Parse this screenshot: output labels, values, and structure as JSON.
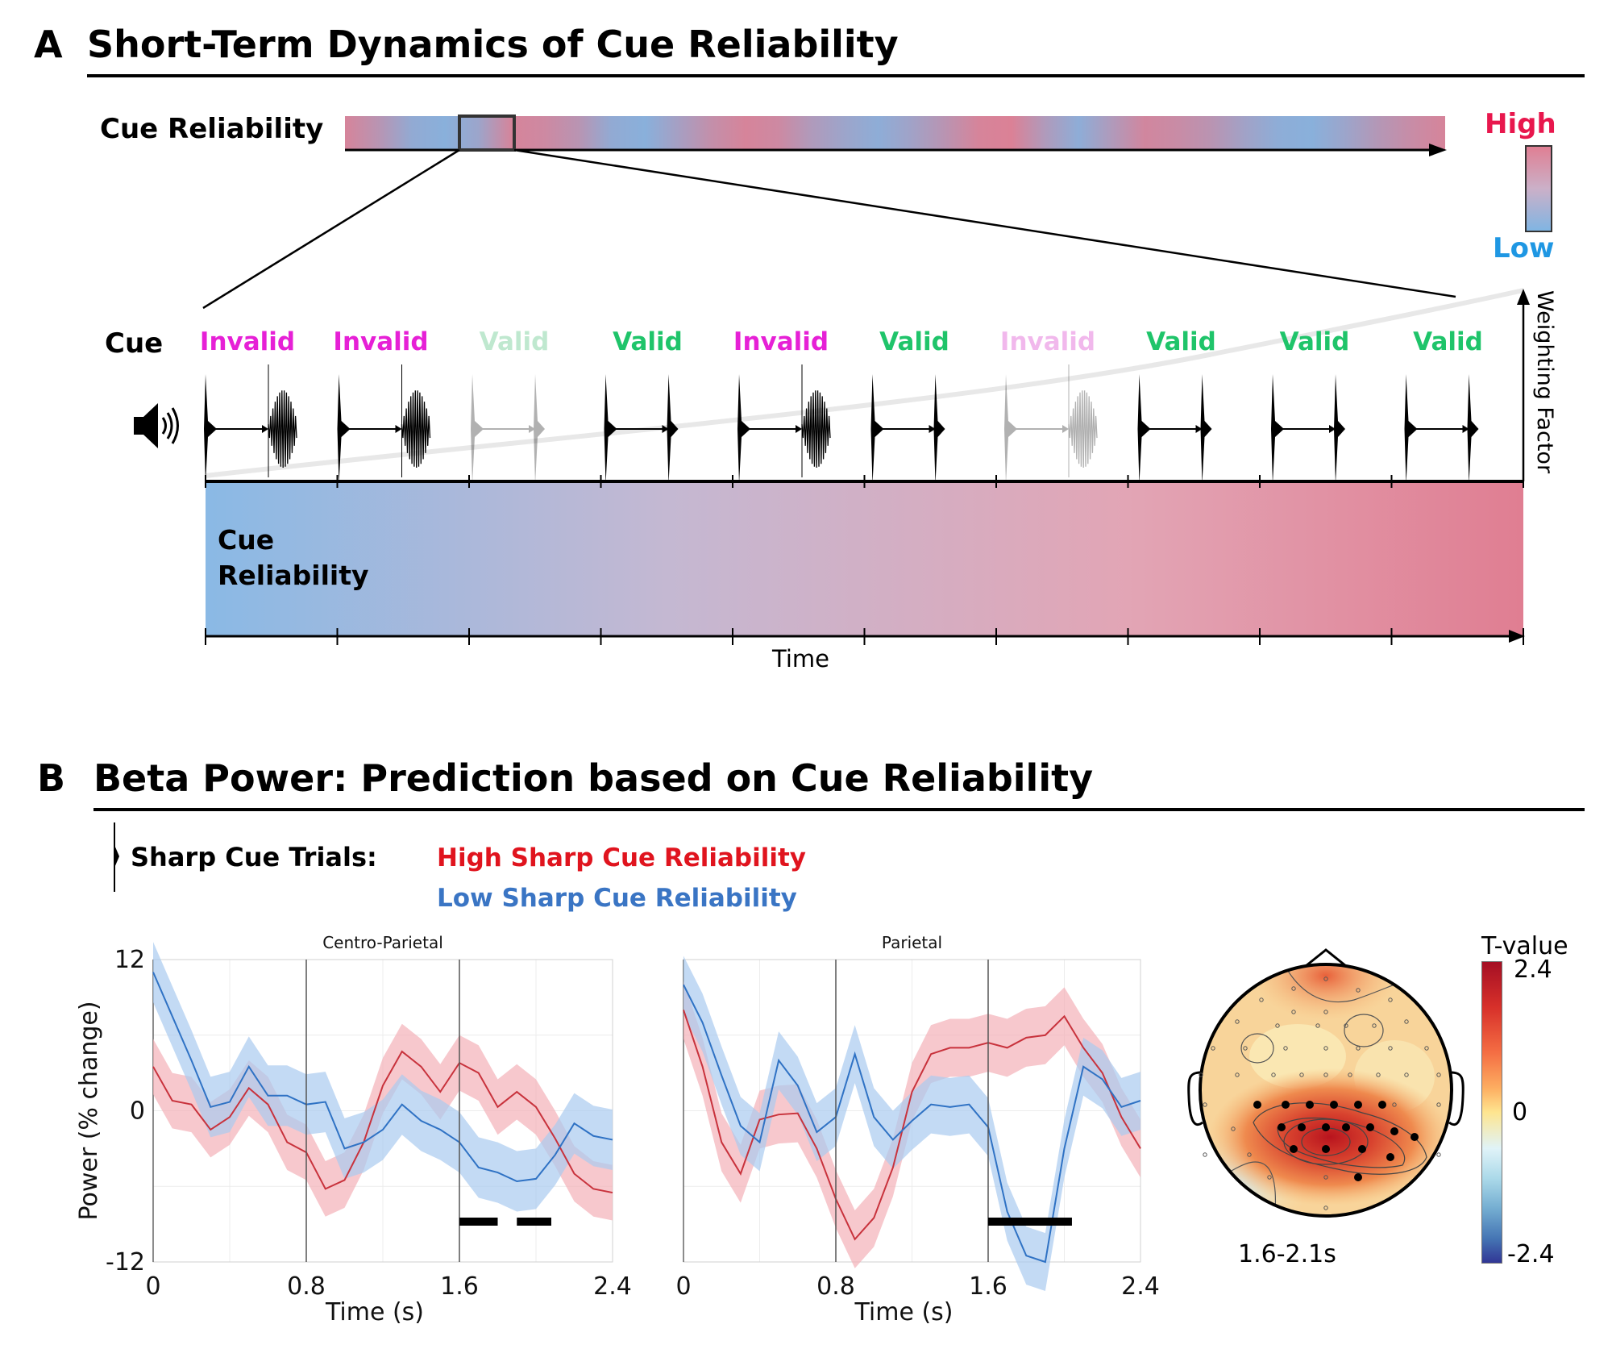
{
  "panel_a": {
    "letter": "A",
    "title": "Short-Term Dynamics of Cue Reliability",
    "top_bar_label": "Cue Reliability",
    "legend_high": "High",
    "legend_low": "Low",
    "cue_row_label": "Cue",
    "cues": [
      {
        "label": "Invalid",
        "type": "invalid",
        "faded": false
      },
      {
        "label": "Invalid",
        "type": "invalid",
        "faded": false
      },
      {
        "label": "Valid",
        "type": "valid",
        "faded": true
      },
      {
        "label": "Valid",
        "type": "valid",
        "faded": false
      },
      {
        "label": "Invalid",
        "type": "invalid",
        "faded": false
      },
      {
        "label": "Valid",
        "type": "valid",
        "faded": false
      },
      {
        "label": "Invalid",
        "type": "invalid",
        "faded": true
      },
      {
        "label": "Valid",
        "type": "valid",
        "faded": false
      },
      {
        "label": "Valid",
        "type": "valid",
        "faded": false
      },
      {
        "label": "Valid",
        "type": "valid",
        "faded": false
      }
    ],
    "weighting_axis_label": "Weighting Factor",
    "gradient_box_label_line1": "Cue",
    "gradient_box_label_line2": "Reliability",
    "time_axis_label": "Time",
    "colors": {
      "invalid": "#e620d6",
      "valid": "#1fc46a",
      "invalid_faded": "#f1b8ec",
      "valid_faded": "#bfe8cf",
      "high": "#e8174d",
      "low": "#1f97e3",
      "rel_high": "#e07e92",
      "rel_low": "#7fb5e3"
    },
    "top_bar_pattern": [
      0.9,
      0.6,
      0.2,
      0.1,
      0.3,
      0.9,
      0.8,
      0.6,
      0.2,
      0.1,
      0.4,
      0.7,
      0.9,
      0.8,
      0.5,
      0.3,
      0.15,
      0.35,
      0.6,
      0.9,
      0.95,
      0.5,
      0.15,
      0.5,
      0.85,
      0.75,
      0.6,
      0.35,
      0.15,
      0.1,
      0.3,
      0.55,
      0.75,
      0.9
    ]
  },
  "panel_b": {
    "letter": "B",
    "title": "Beta Power: Prediction based on Cue Reliability",
    "trial_type_label": "Sharp Cue Trials:",
    "legend": [
      {
        "label": "High Sharp Cue Reliability",
        "color": "#e0141e"
      },
      {
        "label": "Low Sharp Cue Reliability",
        "color": "#3a75c4"
      }
    ],
    "topo": {
      "time_window_label": "1.6-2.1s",
      "colorbar_title": "T-value",
      "colorbar_max": "2.4",
      "colorbar_mid": "0",
      "colorbar_min": "-2.4"
    }
  },
  "chart_data": [
    {
      "type": "line",
      "title": "Centro-Parietal",
      "xlabel": "Time (s)",
      "ylabel": "Power (% change)",
      "xlim": [
        0,
        2.4
      ],
      "ylim": [
        -12,
        12
      ],
      "xticks": [
        "0",
        "0.8",
        "1.6",
        "2.4"
      ],
      "yticks": [
        "12",
        "0",
        "-12"
      ],
      "vlines": [
        0.8,
        1.6
      ],
      "grid": true,
      "x": [
        0,
        0.1,
        0.2,
        0.3,
        0.4,
        0.5,
        0.6,
        0.7,
        0.8,
        0.9,
        1.0,
        1.1,
        1.2,
        1.3,
        1.4,
        1.5,
        1.6,
        1.7,
        1.8,
        1.9,
        2.0,
        2.1,
        2.2,
        2.3,
        2.4
      ],
      "series": [
        {
          "name": "High Sharp Cue Reliability",
          "color": "#c8323c",
          "band_color": "#f3b1b8",
          "values": [
            3.5,
            0.8,
            0.5,
            -1.5,
            -0.5,
            1.8,
            0.5,
            -2.5,
            -3.3,
            -6.2,
            -5.5,
            -2.5,
            2,
            4.7,
            3.5,
            1.5,
            3.8,
            3,
            0.3,
            1.5,
            0.3,
            -2.2,
            -5,
            -6.2,
            -6.5
          ],
          "ci": 2.2
        },
        {
          "name": "Low Sharp Cue Reliability",
          "color": "#2f72c4",
          "band_color": "#a9cbf0",
          "values": [
            11,
            7.5,
            4,
            0.3,
            0.7,
            3.5,
            1.2,
            1.2,
            0.5,
            0.7,
            -3,
            -2.5,
            -1.5,
            0.5,
            -0.8,
            -1.5,
            -2.5,
            -4.5,
            -4.9,
            -5.6,
            -5.4,
            -3.5,
            -1,
            -2,
            -2.3
          ],
          "ci": 2.4
        }
      ],
      "significance": [
        [
          1.6,
          1.8
        ],
        [
          1.9,
          2.08
        ]
      ]
    },
    {
      "type": "line",
      "title": "Parietal",
      "xlabel": "Time (s)",
      "ylabel": "",
      "xlim": [
        0,
        2.4
      ],
      "ylim": [
        -12,
        12
      ],
      "xticks": [
        "0",
        "0.8",
        "1.6",
        "2.4"
      ],
      "yticks": [],
      "vlines": [
        0.8,
        1.6
      ],
      "grid": true,
      "x": [
        0,
        0.1,
        0.2,
        0.3,
        0.4,
        0.5,
        0.6,
        0.7,
        0.8,
        0.9,
        1.0,
        1.1,
        1.2,
        1.3,
        1.4,
        1.5,
        1.6,
        1.7,
        1.8,
        1.9,
        2.0,
        2.1,
        2.2,
        2.3,
        2.4
      ],
      "series": [
        {
          "name": "High Sharp Cue Reliability",
          "color": "#c8323c",
          "band_color": "#f3b1b8",
          "values": [
            8,
            3.5,
            -2.5,
            -5,
            -0.7,
            -0.3,
            -0.2,
            -3,
            -7,
            -10.2,
            -8.5,
            -4.5,
            1.5,
            4.5,
            5,
            5,
            5.4,
            5,
            5.8,
            6,
            7.5,
            5,
            3,
            -0.5,
            -3
          ],
          "ci": 2.3
        },
        {
          "name": "Low Sharp Cue Reliability",
          "color": "#2f72c4",
          "band_color": "#a9cbf0",
          "values": [
            10,
            7,
            2.8,
            -1.2,
            -2.5,
            4,
            2,
            -1.7,
            -0.5,
            4.5,
            -0.5,
            -2.3,
            -0.8,
            0.5,
            0.3,
            0.5,
            -1.3,
            -8,
            -11.5,
            -12,
            -3,
            3.5,
            2.5,
            0.3,
            0.8
          ],
          "ci": 2.3
        }
      ],
      "significance": [
        [
          1.6,
          2.04
        ]
      ]
    }
  ]
}
